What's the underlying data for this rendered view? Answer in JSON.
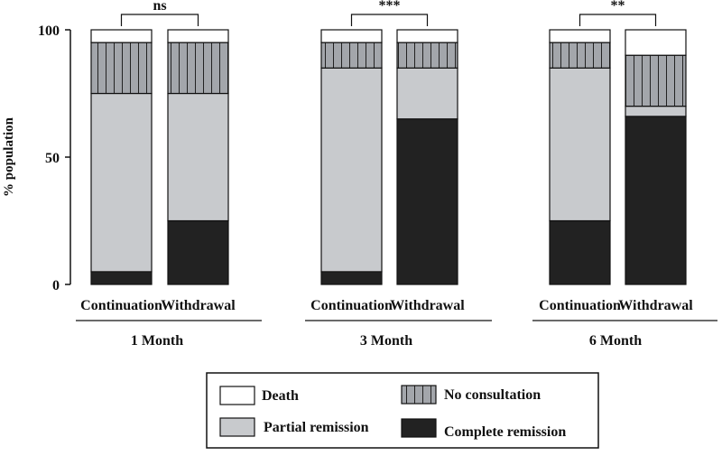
{
  "chart_data": {
    "type": "bar",
    "stacked": true,
    "ylabel": "% population",
    "ylim": [
      0,
      100
    ],
    "yticks": [
      0,
      50,
      100
    ],
    "groups": [
      {
        "label": "1 Month",
        "significance": "ns"
      },
      {
        "label": "3 Month",
        "significance": "***"
      },
      {
        "label": "6 Month",
        "significance": "**"
      }
    ],
    "bar_labels": [
      "Continuation",
      "Withdrawal"
    ],
    "bars": [
      {
        "group": "1 Month",
        "arm": "Continuation",
        "complete_remission": 5,
        "partial_remission": 70,
        "no_consultation": 20,
        "death": 5
      },
      {
        "group": "1 Month",
        "arm": "Withdrawal",
        "complete_remission": 25,
        "partial_remission": 50,
        "no_consultation": 20,
        "death": 5
      },
      {
        "group": "3 Month",
        "arm": "Continuation",
        "complete_remission": 5,
        "partial_remission": 80,
        "no_consultation": 10,
        "death": 5
      },
      {
        "group": "3 Month",
        "arm": "Withdrawal",
        "complete_remission": 65,
        "partial_remission": 20,
        "no_consultation": 10,
        "death": 5
      },
      {
        "group": "6 Month",
        "arm": "Continuation",
        "complete_remission": 25,
        "partial_remission": 60,
        "no_consultation": 10,
        "death": 5
      },
      {
        "group": "6 Month",
        "arm": "Withdrawal",
        "complete_remission": 66,
        "partial_remission": 4,
        "no_consultation": 20,
        "death": 10
      }
    ],
    "series": [
      {
        "key": "complete_remission",
        "name": "Complete remission",
        "color": "#222222"
      },
      {
        "key": "partial_remission",
        "name": "Partial remission",
        "color": "#c8cacd"
      },
      {
        "key": "no_consultation",
        "name": "No consultation",
        "color": "#a3a6ab",
        "pattern": "vertical-stripes"
      },
      {
        "key": "death",
        "name": "Death",
        "color": "#ffffff"
      }
    ],
    "legend_order": [
      "death",
      "no_consultation",
      "partial_remission",
      "complete_remission"
    ],
    "legend_placement": "bottom-center"
  }
}
